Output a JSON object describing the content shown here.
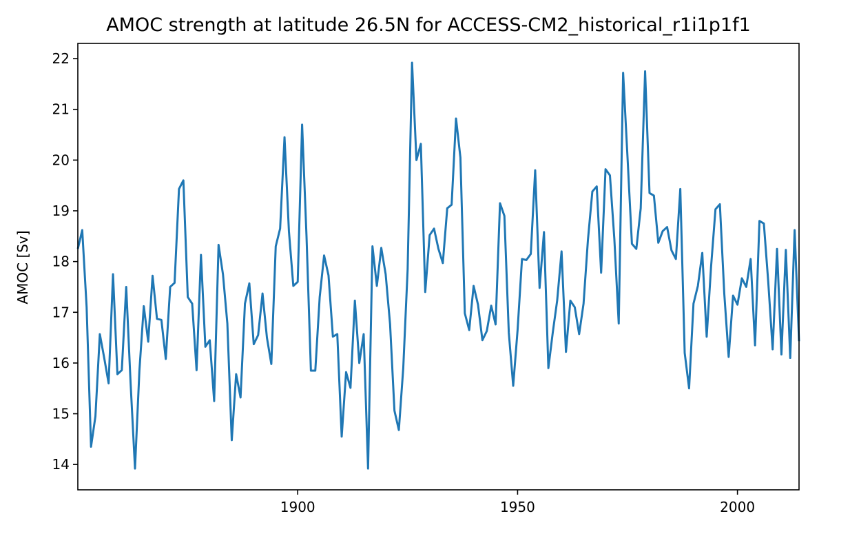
{
  "chart_data": {
    "type": "line",
    "title": "AMOC strength at latitude 26.5N for ACCESS-CM2_historical_r1i1p1f1",
    "xlabel": "",
    "ylabel": "AMOC [Sv]",
    "xlim": [
      1850,
      2014
    ],
    "ylim": [
      13.5,
      22.3
    ],
    "xticks": [
      1900,
      1950,
      2000
    ],
    "yticks": [
      14,
      15,
      16,
      17,
      18,
      19,
      20,
      21,
      22
    ],
    "grid": false,
    "line_color": "#1f77b4",
    "series": [
      {
        "x": [
          1850,
          1851,
          1852,
          1853,
          1854,
          1855,
          1856,
          1857,
          1858,
          1859,
          1860,
          1861,
          1862,
          1863,
          1864,
          1865,
          1866,
          1867,
          1868,
          1869,
          1870,
          1871,
          1872,
          1873,
          1874,
          1875,
          1876,
          1877,
          1878,
          1879,
          1880,
          1881,
          1882,
          1883,
          1884,
          1885,
          1886,
          1887,
          1888,
          1889,
          1890,
          1891,
          1892,
          1893,
          1894,
          1895,
          1896,
          1897,
          1898,
          1899,
          1900,
          1901,
          1902,
          1903,
          1904,
          1905,
          1906,
          1907,
          1908,
          1909,
          1910,
          1911,
          1912,
          1913,
          1914,
          1915,
          1916,
          1917,
          1918,
          1919,
          1920,
          1921,
          1922,
          1923,
          1924,
          1925,
          1926,
          1927,
          1928,
          1929,
          1930,
          1931,
          1932,
          1933,
          1934,
          1935,
          1936,
          1937,
          1938,
          1939,
          1940,
          1941,
          1942,
          1943,
          1944,
          1945,
          1946,
          1947,
          1948,
          1949,
          1950,
          1951,
          1952,
          1953,
          1954,
          1955,
          1956,
          1957,
          1958,
          1959,
          1960,
          1961,
          1962,
          1963,
          1964,
          1965,
          1966,
          1967,
          1968,
          1969,
          1970,
          1971,
          1972,
          1973,
          1974,
          1975,
          1976,
          1977,
          1978,
          1979,
          1980,
          1981,
          1982,
          1983,
          1984,
          1985,
          1986,
          1987,
          1988,
          1989,
          1990,
          1991,
          1992,
          1993,
          1994,
          1995,
          1996,
          1997,
          1998,
          1999,
          2000,
          2001,
          2002,
          2003,
          2004,
          2005,
          2006,
          2007,
          2008,
          2009,
          2010,
          2011,
          2012,
          2013,
          2014
        ],
        "values": [
          18.25,
          18.62,
          17.1,
          14.35,
          14.95,
          16.57,
          16.1,
          15.6,
          17.75,
          15.78,
          15.86,
          17.5,
          15.6,
          13.92,
          15.85,
          17.12,
          16.42,
          17.72,
          16.87,
          16.85,
          16.08,
          17.5,
          17.58,
          19.43,
          19.6,
          17.3,
          17.17,
          15.86,
          18.13,
          16.32,
          16.45,
          15.25,
          18.33,
          17.75,
          16.78,
          14.48,
          15.78,
          15.32,
          17.17,
          17.57,
          16.37,
          16.55,
          17.37,
          16.5,
          15.98,
          18.3,
          18.65,
          20.45,
          18.6,
          17.52,
          17.6,
          20.7,
          18.5,
          15.85,
          15.85,
          17.3,
          18.12,
          17.73,
          16.52,
          16.57,
          14.55,
          15.82,
          15.51,
          17.23,
          16.0,
          16.57,
          13.92,
          18.3,
          17.52,
          18.27,
          17.75,
          16.77,
          15.06,
          14.68,
          15.9,
          17.85,
          21.92,
          20.0,
          20.32,
          17.4,
          18.52,
          18.65,
          18.25,
          17.97,
          19.05,
          19.12,
          20.82,
          20.05,
          16.98,
          16.65,
          17.52,
          17.15,
          16.45,
          16.63,
          17.13,
          16.76,
          19.15,
          18.9,
          16.6,
          15.55,
          16.65,
          18.05,
          18.03,
          18.15,
          19.8,
          17.48,
          18.58,
          15.9,
          16.6,
          17.23,
          18.2,
          16.22,
          17.23,
          17.1,
          16.57,
          17.17,
          18.43,
          19.38,
          19.48,
          17.78,
          19.82,
          19.7,
          18.45,
          16.78,
          21.72,
          20.05,
          18.35,
          18.25,
          19.05,
          21.75,
          19.35,
          19.3,
          18.37,
          18.6,
          18.68,
          18.22,
          18.05,
          19.43,
          16.2,
          15.5,
          17.17,
          17.52,
          18.17,
          16.52,
          17.9,
          19.03,
          19.13,
          17.37,
          16.12,
          17.33,
          17.15,
          17.67,
          17.5,
          18.05,
          16.35,
          18.8,
          18.75,
          17.6,
          16.27,
          18.25,
          16.17,
          18.23,
          16.1,
          18.62,
          16.43
        ]
      }
    ]
  }
}
